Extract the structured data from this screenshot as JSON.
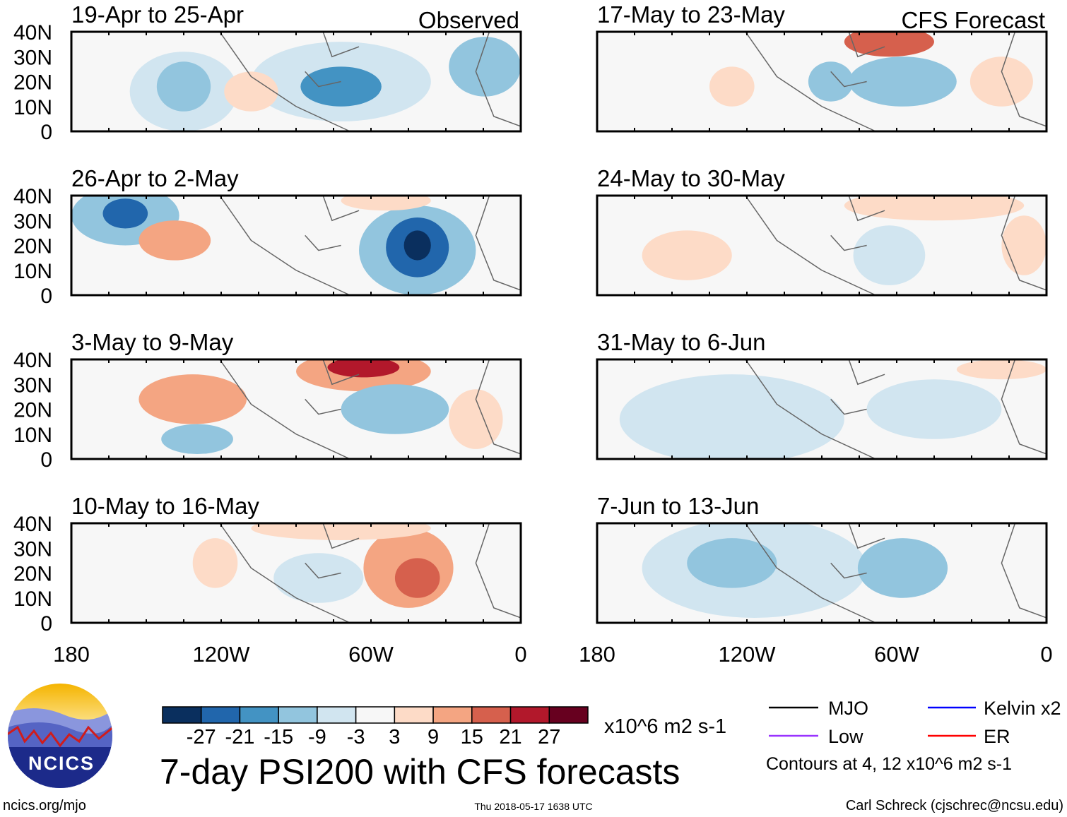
{
  "panels": [
    {
      "title": "19-Apr to 25-Apr",
      "tag": "Observed",
      "column": "left"
    },
    {
      "title": "26-Apr to 2-May",
      "tag": "",
      "column": "left"
    },
    {
      "title": "3-May to 9-May",
      "tag": "",
      "column": "left"
    },
    {
      "title": "10-May to 16-May",
      "tag": "",
      "column": "left"
    },
    {
      "title": "17-May to 23-May",
      "tag": "CFS Forecast",
      "column": "right"
    },
    {
      "title": "24-May to 30-May",
      "tag": "",
      "column": "right"
    },
    {
      "title": "31-May to 6-Jun",
      "tag": "",
      "column": "right"
    },
    {
      "title": "7-Jun to 13-Jun",
      "tag": "",
      "column": "right"
    }
  ],
  "y_ticks": [
    "40N",
    "30N",
    "20N",
    "10N",
    "0"
  ],
  "x_ticks": [
    "180",
    "120W",
    "60W",
    "0"
  ],
  "colorbar": {
    "colors": [
      "#0a2f5e",
      "#2166ac",
      "#4393c3",
      "#92c5de",
      "#d1e5f0",
      "#f7f7f7",
      "#fddbc7",
      "#f4a582",
      "#d6604d",
      "#b2182b",
      "#67001f"
    ],
    "labels": [
      "-27",
      "-21",
      "-15",
      "-9",
      "-3",
      "3",
      "9",
      "15",
      "21",
      "27"
    ],
    "units": "x10^6 m2 s-1"
  },
  "title": "7-day PSI200 with CFS forecasts",
  "timestamp": "Thu 2018-05-17 1638 UTC",
  "url": "ncics.org/mjo",
  "logo_text": "NCICS",
  "author": "Carl Schreck (cjschrec@ncsu.edu)",
  "legend": {
    "items": [
      {
        "label": "MJO",
        "color": "#000000"
      },
      {
        "label": "Kelvin x2",
        "color": "#0000ff"
      },
      {
        "label": "Low",
        "color": "#9933ff"
      },
      {
        "label": "ER",
        "color": "#ff0000"
      }
    ],
    "note": "Contours at 4, 12 x10^6 m2 s-1"
  }
}
